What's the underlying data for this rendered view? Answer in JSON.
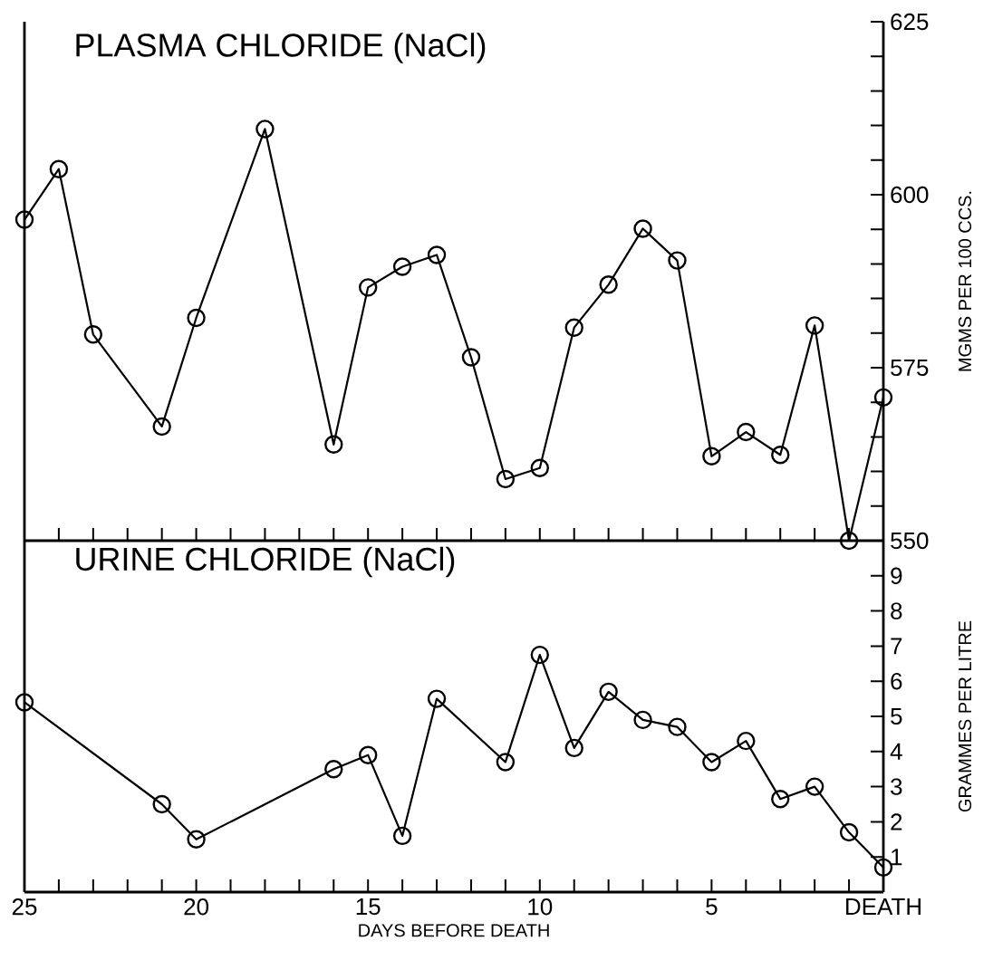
{
  "chart_data": [
    {
      "type": "line",
      "title": "PLASMA CHLORIDE (NaCl)",
      "ylabel": "MGMS PER 100 CCS.",
      "color": "#000000",
      "marker": "circle",
      "tick_labels": "y",
      "x": [
        25,
        24,
        23,
        21,
        20,
        18,
        16,
        15,
        14,
        13,
        12,
        11,
        10,
        9,
        8,
        7,
        6,
        5,
        4,
        3,
        2,
        1,
        0
      ],
      "values": [
        596.4,
        603.7,
        579.8,
        566.5,
        582.2,
        609.5,
        563.9,
        586.6,
        589.6,
        591.3,
        576.5,
        558.9,
        560.5,
        580.8,
        587.0,
        595.1,
        590.5,
        562.2,
        565.7,
        562.4,
        581.1,
        550,
        570.7
      ],
      "xlim": [
        25,
        0
      ],
      "xticks": [
        {
          "value": 25,
          "label": null
        },
        {
          "value": 24,
          "label": null
        },
        {
          "value": 23,
          "label": null
        },
        {
          "value": 22,
          "label": null
        },
        {
          "value": 21,
          "label": null
        },
        {
          "value": 20,
          "label": null
        },
        {
          "value": 19,
          "label": null
        },
        {
          "value": 18,
          "label": null
        },
        {
          "value": 17,
          "label": null
        },
        {
          "value": 16,
          "label": null
        },
        {
          "value": 15,
          "label": null
        },
        {
          "value": 14,
          "label": null
        },
        {
          "value": 13,
          "label": null
        },
        {
          "value": 12,
          "label": null
        },
        {
          "value": 11,
          "label": null
        },
        {
          "value": 10,
          "label": null
        },
        {
          "value": 9,
          "label": null
        },
        {
          "value": 8,
          "label": null
        },
        {
          "value": 7,
          "label": null
        },
        {
          "value": 6,
          "label": null
        },
        {
          "value": 5,
          "label": null
        },
        {
          "value": 4,
          "label": null
        },
        {
          "value": 3,
          "label": null
        },
        {
          "value": 2,
          "label": null
        },
        {
          "value": 1,
          "label": null
        }
      ],
      "ylim": [
        550,
        625
      ],
      "yticks": [
        550,
        {
          "value": 555,
          "label": null
        },
        {
          "value": 560,
          "label": null
        },
        {
          "value": 565,
          "label": null
        },
        {
          "value": 570,
          "label": null
        },
        575,
        {
          "value": 580,
          "label": null
        },
        {
          "value": 585,
          "label": null
        },
        {
          "value": 590,
          "label": null
        },
        {
          "value": 595,
          "label": null
        },
        600,
        {
          "value": 605,
          "label": null
        },
        {
          "value": 610,
          "label": null
        },
        {
          "value": 615,
          "label": null
        },
        {
          "value": 620,
          "label": null
        },
        625
      ]
    },
    {
      "type": "line",
      "title": "URINE CHLORIDE (NaCl)",
      "xlabel": "DAYS BEFORE DEATH",
      "ylabel": "GRAMMES PER LITRE",
      "color": "#000000",
      "marker": "circle",
      "x": [
        25,
        21,
        20,
        16,
        15,
        14,
        13,
        11,
        10,
        9,
        8,
        7,
        6,
        5,
        4,
        3,
        2,
        1,
        0
      ],
      "values": [
        5.4,
        2.5,
        1.5,
        3.5,
        3.9,
        1.6,
        5.5,
        3.7,
        6.75,
        4.1,
        5.7,
        4.9,
        4.7,
        3.7,
        4.3,
        2.65,
        3.0,
        1.7,
        0.7
      ],
      "xlim": [
        25,
        0
      ],
      "xticks": [
        25,
        {
          "value": 24,
          "label": null
        },
        {
          "value": 23,
          "label": null
        },
        {
          "value": 22,
          "label": null
        },
        {
          "value": 21,
          "label": null
        },
        20,
        {
          "value": 19,
          "label": null
        },
        {
          "value": 18,
          "label": null
        },
        {
          "value": 17,
          "label": null
        },
        {
          "value": 16,
          "label": null
        },
        15,
        {
          "value": 14,
          "label": null
        },
        {
          "value": 13,
          "label": null
        },
        {
          "value": 12,
          "label": null
        },
        {
          "value": 11,
          "label": null
        },
        10,
        {
          "value": 9,
          "label": null
        },
        {
          "value": 8,
          "label": null
        },
        {
          "value": 7,
          "label": null
        },
        {
          "value": 6,
          "label": null
        },
        5,
        {
          "value": 4,
          "label": null
        },
        {
          "value": 3,
          "label": null
        },
        {
          "value": 2,
          "label": null
        },
        {
          "value": 1,
          "label": null
        },
        {
          "value": 0,
          "label": "DEATH"
        }
      ],
      "ylim": [
        0,
        10
      ],
      "yticks": [
        1,
        2,
        3,
        4,
        5,
        6,
        7,
        8,
        9
      ]
    }
  ]
}
